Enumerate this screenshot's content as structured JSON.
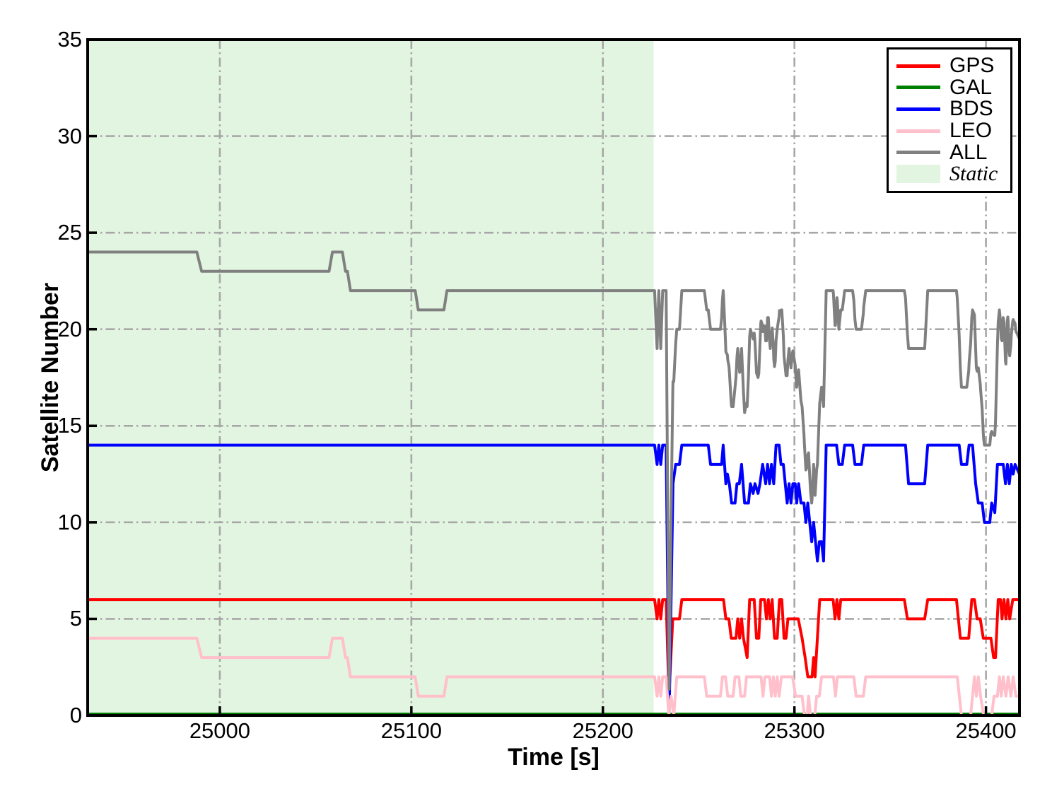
{
  "axes": {
    "xlabel": "Time [s]",
    "ylabel": "Satellite Number"
  },
  "legend": {
    "entries": [
      {
        "label": "GPS",
        "type": "line",
        "color": "#ff0000",
        "italic": false
      },
      {
        "label": "GAL",
        "type": "line",
        "color": "#008000",
        "italic": false
      },
      {
        "label": "BDS",
        "type": "line",
        "color": "#0000ff",
        "italic": false
      },
      {
        "label": "LEO",
        "type": "line",
        "color": "#ffc0cb",
        "italic": false
      },
      {
        "label": "ALL",
        "type": "line",
        "color": "#808080",
        "italic": false
      },
      {
        "label": "Static",
        "type": "patch",
        "color": "#e2f5e0",
        "italic": true
      }
    ]
  },
  "chart_data": {
    "type": "line",
    "title": "",
    "xlabel": "Time [s]",
    "ylabel": "Satellite Number",
    "xlim": [
      24931,
      25417.5
    ],
    "ylim": [
      0,
      35
    ],
    "x_ticks": [
      25000,
      25100,
      25200,
      25300,
      25400
    ],
    "y_ticks": [
      0,
      5,
      10,
      15,
      20,
      25,
      30,
      35
    ],
    "grid": "dash-dot",
    "grid_color": "#a7a7a7",
    "legend_position": "upper right",
    "static_region": {
      "label": "Static",
      "x_start": 24931,
      "x_end": 25226.5,
      "color": "#e2f5e0"
    },
    "series": [
      {
        "name": "GPS",
        "color": "#ff0000",
        "points": [
          [
            24931,
            6
          ],
          [
            25227,
            6
          ],
          [
            25228.3,
            5
          ],
          [
            25229.2,
            6
          ],
          [
            25230.2,
            5
          ],
          [
            25231.2,
            6
          ],
          [
            25233,
            6
          ],
          [
            25234.5,
            1
          ],
          [
            25236.5,
            5
          ],
          [
            25240,
            5
          ],
          [
            25241.2,
            6
          ],
          [
            25263,
            6
          ],
          [
            25264.2,
            5
          ],
          [
            25265.8,
            5
          ],
          [
            25267,
            4
          ],
          [
            25269.5,
            4
          ],
          [
            25270.4,
            5
          ],
          [
            25271.4,
            4
          ],
          [
            25272.4,
            5
          ],
          [
            25273.4,
            4
          ],
          [
            25275.3,
            3
          ],
          [
            25276.6,
            6
          ],
          [
            25279,
            6
          ],
          [
            25280.2,
            4
          ],
          [
            25281.4,
            4
          ],
          [
            25282.4,
            6
          ],
          [
            25284.4,
            6
          ],
          [
            25285.4,
            5
          ],
          [
            25286.4,
            6
          ],
          [
            25287.4,
            5
          ],
          [
            25288.4,
            6
          ],
          [
            25289.6,
            4
          ],
          [
            25291,
            4
          ],
          [
            25292.2,
            6
          ],
          [
            25293.4,
            6
          ],
          [
            25294.6,
            4
          ],
          [
            25295.6,
            4
          ],
          [
            25296.6,
            5
          ],
          [
            25302,
            5
          ],
          [
            25304,
            4
          ],
          [
            25305.6,
            3
          ],
          [
            25307,
            2
          ],
          [
            25309.2,
            2
          ],
          [
            25310,
            3
          ],
          [
            25310.8,
            2
          ],
          [
            25313.2,
            6
          ],
          [
            25320.2,
            6
          ],
          [
            25321.2,
            5
          ],
          [
            25322.2,
            6
          ],
          [
            25323.2,
            5
          ],
          [
            25324.2,
            6
          ],
          [
            25357.4,
            6
          ],
          [
            25359,
            5
          ],
          [
            25368,
            5
          ],
          [
            25369.6,
            6
          ],
          [
            25384.6,
            6
          ],
          [
            25386.6,
            4
          ],
          [
            25391,
            4
          ],
          [
            25392.6,
            6
          ],
          [
            25394,
            6
          ],
          [
            25395.4,
            5
          ],
          [
            25397,
            5
          ],
          [
            25398.6,
            4
          ],
          [
            25402.6,
            4
          ],
          [
            25404,
            3
          ],
          [
            25405,
            3
          ],
          [
            25406.4,
            6
          ],
          [
            25407.6,
            6
          ],
          [
            25408.4,
            5
          ],
          [
            25409.4,
            6
          ],
          [
            25410.4,
            5
          ],
          [
            25411.4,
            6
          ],
          [
            25412.4,
            5
          ],
          [
            25414,
            6
          ],
          [
            25417.5,
            6
          ]
        ]
      },
      {
        "name": "GAL",
        "color": "#008000",
        "points": [
          [
            24931,
            0
          ],
          [
            25417.5,
            0
          ]
        ]
      },
      {
        "name": "BDS",
        "color": "#0000ff",
        "points": [
          [
            24931,
            14
          ],
          [
            25227,
            14
          ],
          [
            25228.3,
            13
          ],
          [
            25229.2,
            14
          ],
          [
            25230.2,
            13
          ],
          [
            25231.2,
            14
          ],
          [
            25233,
            14
          ],
          [
            25234.6,
            0
          ],
          [
            25236.6,
            12
          ],
          [
            25238,
            13
          ],
          [
            25240,
            13
          ],
          [
            25241.2,
            14
          ],
          [
            25255,
            14
          ],
          [
            25256.2,
            13
          ],
          [
            25262,
            13
          ],
          [
            25262.8,
            14
          ],
          [
            25264.2,
            12
          ],
          [
            25265,
            12.5
          ],
          [
            25266,
            12
          ],
          [
            25267.2,
            11
          ],
          [
            25269,
            11
          ],
          [
            25270,
            12
          ],
          [
            25271.2,
            12
          ],
          [
            25272.4,
            13
          ],
          [
            25274,
            11
          ],
          [
            25276,
            11
          ],
          [
            25277,
            12
          ],
          [
            25278.4,
            11.5
          ],
          [
            25279.4,
            12
          ],
          [
            25281,
            11.5
          ],
          [
            25282,
            12
          ],
          [
            25283.4,
            13
          ],
          [
            25285,
            12
          ],
          [
            25286,
            13
          ],
          [
            25287,
            12
          ],
          [
            25288,
            13
          ],
          [
            25289.2,
            12
          ],
          [
            25290.4,
            14
          ],
          [
            25292,
            14
          ],
          [
            25293,
            13
          ],
          [
            25294.2,
            13
          ],
          [
            25295.2,
            12
          ],
          [
            25296.2,
            11
          ],
          [
            25297.2,
            12
          ],
          [
            25298.2,
            11
          ],
          [
            25299.2,
            12
          ],
          [
            25300.4,
            12
          ],
          [
            25301.2,
            11
          ],
          [
            25302.2,
            12
          ],
          [
            25303.4,
            11
          ],
          [
            25305,
            11
          ],
          [
            25306,
            10
          ],
          [
            25307,
            11
          ],
          [
            25308,
            10
          ],
          [
            25309,
            9
          ],
          [
            25310,
            10
          ],
          [
            25311,
            9
          ],
          [
            25312,
            8
          ],
          [
            25313,
            9
          ],
          [
            25314.2,
            9
          ],
          [
            25315.2,
            8
          ],
          [
            25316.6,
            14
          ],
          [
            25322,
            14
          ],
          [
            25323.2,
            13
          ],
          [
            25325,
            13
          ],
          [
            25326.2,
            14
          ],
          [
            25330.4,
            14
          ],
          [
            25331.6,
            13
          ],
          [
            25335,
            13
          ],
          [
            25336.2,
            14
          ],
          [
            25358,
            14
          ],
          [
            25359.6,
            12
          ],
          [
            25368,
            12
          ],
          [
            25369.6,
            14
          ],
          [
            25386,
            14
          ],
          [
            25387.2,
            13
          ],
          [
            25390,
            13
          ],
          [
            25391.2,
            14
          ],
          [
            25393,
            14
          ],
          [
            25394.6,
            12
          ],
          [
            25396,
            11
          ],
          [
            25398,
            11
          ],
          [
            25399.2,
            10
          ],
          [
            25402,
            10
          ],
          [
            25403,
            11
          ],
          [
            25404.6,
            10.5
          ],
          [
            25406,
            13
          ],
          [
            25409,
            13
          ],
          [
            25410.2,
            12
          ],
          [
            25411.2,
            13
          ],
          [
            25412.2,
            12
          ],
          [
            25413.2,
            13
          ],
          [
            25414.2,
            12.5
          ],
          [
            25415.2,
            13
          ],
          [
            25417.5,
            12.5
          ]
        ]
      },
      {
        "name": "LEO",
        "color": "#ffc0cb",
        "points": [
          [
            24931,
            4
          ],
          [
            24988,
            4
          ],
          [
            24990.5,
            3
          ],
          [
            25057,
            3
          ],
          [
            25058.8,
            4
          ],
          [
            25064,
            4
          ],
          [
            25065.6,
            3
          ],
          [
            25066.6,
            3
          ],
          [
            25068.2,
            2
          ],
          [
            25102,
            2
          ],
          [
            25103.6,
            1
          ],
          [
            25117,
            1
          ],
          [
            25118.6,
            2
          ],
          [
            25227,
            2
          ],
          [
            25228.3,
            1
          ],
          [
            25229.2,
            2
          ],
          [
            25230.2,
            1
          ],
          [
            25231.2,
            2
          ],
          [
            25233,
            2
          ],
          [
            25234.4,
            0
          ],
          [
            25235.6,
            1
          ],
          [
            25237,
            0
          ],
          [
            25238.6,
            2
          ],
          [
            25253,
            2
          ],
          [
            25254.2,
            1
          ],
          [
            25261.4,
            1
          ],
          [
            25262.4,
            2
          ],
          [
            25264,
            2
          ],
          [
            25265.2,
            1
          ],
          [
            25268,
            1
          ],
          [
            25269,
            2
          ],
          [
            25271,
            2
          ],
          [
            25272,
            1
          ],
          [
            25274,
            1
          ],
          [
            25275,
            2
          ],
          [
            25282.6,
            2
          ],
          [
            25283.6,
            1
          ],
          [
            25284.6,
            2
          ],
          [
            25287,
            2
          ],
          [
            25288,
            1
          ],
          [
            25289,
            2
          ],
          [
            25290,
            1
          ],
          [
            25291,
            2
          ],
          [
            25292,
            1
          ],
          [
            25293.2,
            2
          ],
          [
            25299,
            2
          ],
          [
            25300.6,
            1
          ],
          [
            25304,
            1
          ],
          [
            25305.2,
            0
          ],
          [
            25306.6,
            0
          ],
          [
            25307.4,
            1
          ],
          [
            25308.4,
            0
          ],
          [
            25310.6,
            0
          ],
          [
            25311.6,
            1
          ],
          [
            25313,
            1
          ],
          [
            25314.2,
            2
          ],
          [
            25320.4,
            2
          ],
          [
            25321.4,
            1
          ],
          [
            25322.4,
            2
          ],
          [
            25331,
            2
          ],
          [
            25332.2,
            1
          ],
          [
            25336,
            1
          ],
          [
            25337.2,
            2
          ],
          [
            25385,
            2
          ],
          [
            25387.2,
            0
          ],
          [
            25392,
            0
          ],
          [
            25393,
            1
          ],
          [
            25394,
            2
          ],
          [
            25395,
            1
          ],
          [
            25396,
            2
          ],
          [
            25397.2,
            1
          ],
          [
            25398.8,
            0
          ],
          [
            25403,
            0
          ],
          [
            25404.2,
            1
          ],
          [
            25406,
            1
          ],
          [
            25407,
            2
          ],
          [
            25408,
            1
          ],
          [
            25409,
            2
          ],
          [
            25410.4,
            1
          ],
          [
            25411.6,
            2
          ],
          [
            25413,
            1
          ],
          [
            25414.2,
            2
          ],
          [
            25415.6,
            1
          ],
          [
            25417.5,
            1
          ]
        ]
      },
      {
        "name": "ALL",
        "color": "#808080",
        "sum_of": [
          "GPS",
          "GAL",
          "BDS",
          "LEO"
        ],
        "points": []
      }
    ]
  }
}
